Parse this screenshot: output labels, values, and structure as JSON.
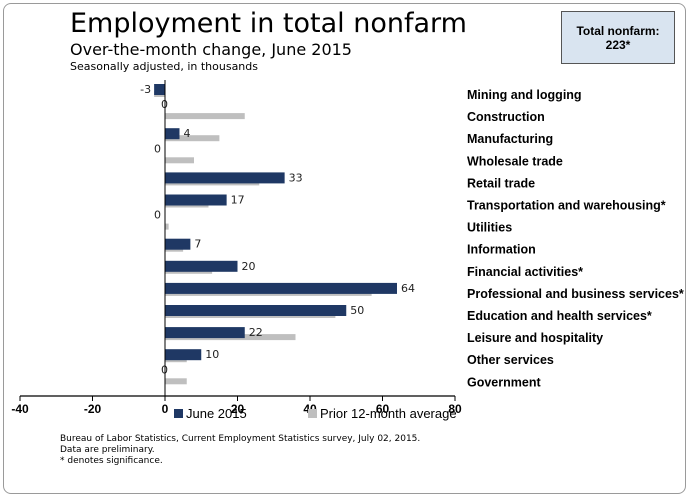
{
  "chart_data": {
    "type": "bar",
    "orientation": "horizontal",
    "title": "Employment in total nonfarm",
    "subtitle": "Over-the-month change, June 2015",
    "units_note": "Seasonally adjusted, in thousands",
    "categories": [
      "Mining and logging",
      "Construction",
      "Manufacturing",
      "Wholesale trade",
      "Retail trade",
      "Transportation and warehousing*",
      "Utilities",
      "Information",
      "Financial activities*",
      "Professional and business services*",
      "Education and health services*",
      "Leisure and hospitality",
      "Other services",
      "Government"
    ],
    "series": [
      {
        "name": "June 2015",
        "color": "#1f3864",
        "values": [
          -3,
          0,
          4,
          0,
          33,
          17,
          0,
          7,
          20,
          64,
          50,
          22,
          10,
          0
        ]
      },
      {
        "name": "Prior 12-month average",
        "color": "#bfbfbf",
        "values": [
          -3,
          22,
          15,
          8,
          26,
          12,
          1,
          5,
          13,
          57,
          47,
          36,
          6,
          6
        ]
      }
    ],
    "data_labels": [
      "-3",
      "0",
      "4",
      "0",
      "33",
      "17",
      "0",
      "7",
      "20",
      "64",
      "50",
      "22",
      "10",
      "0"
    ],
    "xlim": [
      -40,
      80
    ],
    "xticks": [
      -40,
      -20,
      0,
      20,
      40,
      60,
      80
    ],
    "xticklabels": [
      "-40",
      "-20",
      "0",
      "20",
      "40",
      "60",
      "80"
    ],
    "legend": "bottom",
    "grid": false
  },
  "total_box": {
    "line1": "Total nonfarm:",
    "line2": "223*"
  },
  "source": {
    "line1": "Bureau of Labor Statistics, Current Employment Statistics survey, July 02, 2015.",
    "line2": "Data are preliminary.",
    "line3": "* denotes significance."
  }
}
